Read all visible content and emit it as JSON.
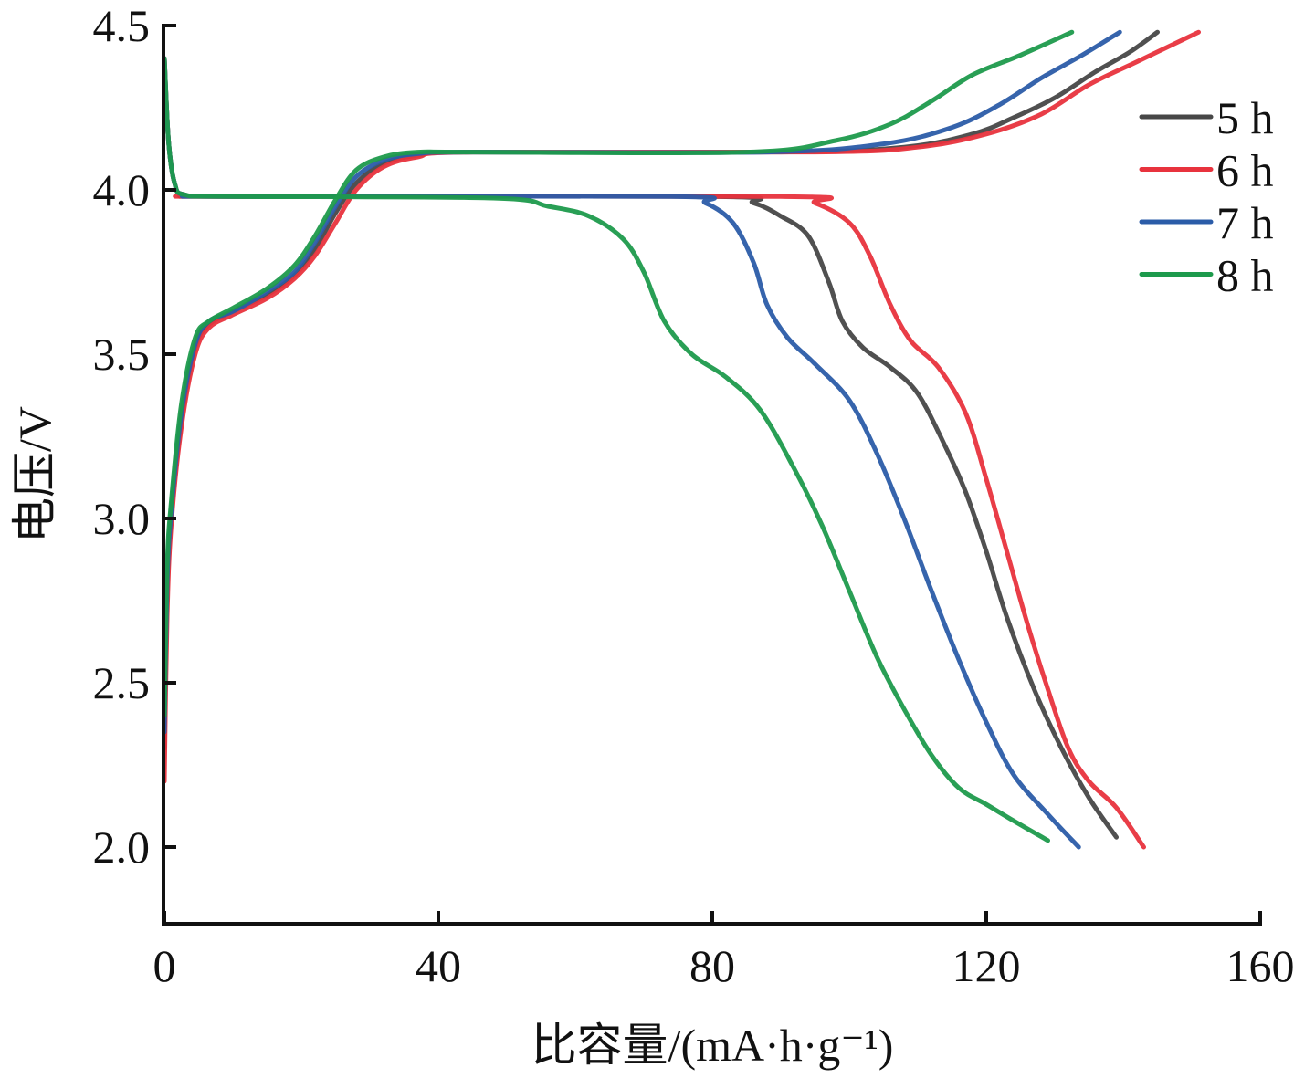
{
  "chart_data": {
    "type": "line",
    "title": "",
    "xlabel": "比容量/(mA·h·g⁻¹)",
    "ylabel": "电压/V",
    "xlim": [
      0,
      160
    ],
    "ylim": [
      1.77,
      4.5
    ],
    "xticks": [
      0,
      40,
      80,
      120,
      160
    ],
    "xtick_labels": [
      "0",
      "40",
      "80",
      "120",
      "160"
    ],
    "yticks": [
      2.0,
      2.5,
      3.0,
      3.5,
      4.0,
      4.5
    ],
    "ytick_labels": [
      "2.0",
      "2.5",
      "3.0",
      "3.5",
      "4.0",
      "4.5"
    ],
    "grid": false,
    "legend_position": "top-right",
    "series": [
      {
        "name": "5 h",
        "color": "#474747",
        "charge": [
          [
            0,
            2.3
          ],
          [
            0.4,
            2.75
          ],
          [
            1,
            3.0
          ],
          [
            2.5,
            3.3
          ],
          [
            4.5,
            3.52
          ],
          [
            6.5,
            3.59
          ],
          [
            10,
            3.63
          ],
          [
            15,
            3.68
          ],
          [
            19,
            3.74
          ],
          [
            22,
            3.82
          ],
          [
            25,
            3.93
          ],
          [
            28,
            4.02
          ],
          [
            32,
            4.08
          ],
          [
            37,
            4.105
          ],
          [
            45,
            4.115
          ],
          [
            90,
            4.115
          ],
          [
            108,
            4.13
          ],
          [
            118,
            4.17
          ],
          [
            124,
            4.22
          ],
          [
            130,
            4.28
          ],
          [
            136,
            4.36
          ],
          [
            141,
            4.42
          ],
          [
            145,
            4.48
          ]
        ],
        "discharge": [
          [
            0,
            4.4
          ],
          [
            0.6,
            4.15
          ],
          [
            1.5,
            4.02
          ],
          [
            3,
            3.985
          ],
          [
            10,
            3.98
          ],
          [
            80,
            3.98
          ],
          [
            86,
            3.96
          ],
          [
            90,
            3.92
          ],
          [
            94,
            3.86
          ],
          [
            97,
            3.72
          ],
          [
            99,
            3.6
          ],
          [
            102,
            3.52
          ],
          [
            106,
            3.46
          ],
          [
            110,
            3.38
          ],
          [
            114,
            3.22
          ],
          [
            117,
            3.08
          ],
          [
            120,
            2.9
          ],
          [
            123,
            2.7
          ],
          [
            127,
            2.48
          ],
          [
            131,
            2.3
          ],
          [
            135,
            2.15
          ],
          [
            139,
            2.03
          ]
        ]
      },
      {
        "name": "6 h",
        "color": "#e8333d",
        "charge": [
          [
            0,
            2.2
          ],
          [
            0.4,
            2.7
          ],
          [
            1,
            2.98
          ],
          [
            2.5,
            3.28
          ],
          [
            4.5,
            3.5
          ],
          [
            6.5,
            3.58
          ],
          [
            10,
            3.62
          ],
          [
            15,
            3.67
          ],
          [
            19,
            3.73
          ],
          [
            22,
            3.8
          ],
          [
            25,
            3.9
          ],
          [
            28,
            4.0
          ],
          [
            32,
            4.07
          ],
          [
            37,
            4.1
          ],
          [
            45,
            4.115
          ],
          [
            95,
            4.115
          ],
          [
            110,
            4.13
          ],
          [
            120,
            4.17
          ],
          [
            128,
            4.23
          ],
          [
            135,
            4.32
          ],
          [
            142,
            4.39
          ],
          [
            151,
            4.48
          ]
        ],
        "discharge": [
          [
            0,
            4.4
          ],
          [
            0.6,
            4.15
          ],
          [
            1.5,
            4.02
          ],
          [
            3,
            3.985
          ],
          [
            10,
            3.98
          ],
          [
            90,
            3.98
          ],
          [
            95,
            3.96
          ],
          [
            100,
            3.9
          ],
          [
            103,
            3.8
          ],
          [
            106,
            3.65
          ],
          [
            109,
            3.54
          ],
          [
            113,
            3.46
          ],
          [
            117,
            3.32
          ],
          [
            120,
            3.12
          ],
          [
            123,
            2.9
          ],
          [
            126,
            2.68
          ],
          [
            129,
            2.48
          ],
          [
            132,
            2.3
          ],
          [
            135,
            2.2
          ],
          [
            139,
            2.12
          ],
          [
            143,
            2.0
          ]
        ]
      },
      {
        "name": "7 h",
        "color": "#2b5ca8",
        "charge": [
          [
            0,
            2.35
          ],
          [
            0.4,
            2.8
          ],
          [
            1,
            3.02
          ],
          [
            2.5,
            3.32
          ],
          [
            4.5,
            3.53
          ],
          [
            6.5,
            3.6
          ],
          [
            10,
            3.63
          ],
          [
            15,
            3.69
          ],
          [
            19,
            3.75
          ],
          [
            22,
            3.84
          ],
          [
            25,
            3.95
          ],
          [
            28,
            4.04
          ],
          [
            32,
            4.09
          ],
          [
            37,
            4.11
          ],
          [
            45,
            4.115
          ],
          [
            88,
            4.115
          ],
          [
            105,
            4.14
          ],
          [
            115,
            4.19
          ],
          [
            122,
            4.26
          ],
          [
            128,
            4.34
          ],
          [
            134,
            4.41
          ],
          [
            139.5,
            4.48
          ]
        ],
        "discharge": [
          [
            0,
            4.4
          ],
          [
            0.6,
            4.15
          ],
          [
            1.5,
            4.02
          ],
          [
            3,
            3.985
          ],
          [
            10,
            3.98
          ],
          [
            74,
            3.98
          ],
          [
            79,
            3.96
          ],
          [
            83,
            3.9
          ],
          [
            86,
            3.78
          ],
          [
            88,
            3.65
          ],
          [
            91,
            3.55
          ],
          [
            95,
            3.47
          ],
          [
            100,
            3.36
          ],
          [
            104,
            3.2
          ],
          [
            108,
            3.0
          ],
          [
            112,
            2.78
          ],
          [
            116,
            2.57
          ],
          [
            120,
            2.38
          ],
          [
            124,
            2.22
          ],
          [
            129,
            2.1
          ],
          [
            133.5,
            2.0
          ]
        ]
      },
      {
        "name": "8 h",
        "color": "#1d9a4c",
        "charge": [
          [
            0,
            2.4
          ],
          [
            0.4,
            2.85
          ],
          [
            1,
            3.05
          ],
          [
            2.5,
            3.35
          ],
          [
            4.5,
            3.55
          ],
          [
            6.5,
            3.6
          ],
          [
            10,
            3.64
          ],
          [
            15,
            3.7
          ],
          [
            19,
            3.77
          ],
          [
            22,
            3.86
          ],
          [
            25,
            3.97
          ],
          [
            28,
            4.06
          ],
          [
            32,
            4.1
          ],
          [
            37,
            4.115
          ],
          [
            45,
            4.115
          ],
          [
            85,
            4.115
          ],
          [
            98,
            4.15
          ],
          [
            106,
            4.2
          ],
          [
            112,
            4.27
          ],
          [
            118,
            4.35
          ],
          [
            125,
            4.41
          ],
          [
            132.5,
            4.48
          ]
        ],
        "discharge": [
          [
            0,
            4.4
          ],
          [
            0.6,
            4.15
          ],
          [
            1.5,
            4.02
          ],
          [
            3,
            3.985
          ],
          [
            10,
            3.98
          ],
          [
            48,
            3.975
          ],
          [
            56,
            3.95
          ],
          [
            62,
            3.92
          ],
          [
            67,
            3.85
          ],
          [
            70,
            3.75
          ],
          [
            73,
            3.6
          ],
          [
            77,
            3.5
          ],
          [
            82,
            3.43
          ],
          [
            87,
            3.33
          ],
          [
            92,
            3.15
          ],
          [
            96,
            2.98
          ],
          [
            100,
            2.78
          ],
          [
            104,
            2.58
          ],
          [
            108,
            2.42
          ],
          [
            112,
            2.28
          ],
          [
            116,
            2.18
          ],
          [
            120,
            2.13
          ],
          [
            124,
            2.08
          ],
          [
            129,
            2.02
          ]
        ]
      }
    ]
  }
}
